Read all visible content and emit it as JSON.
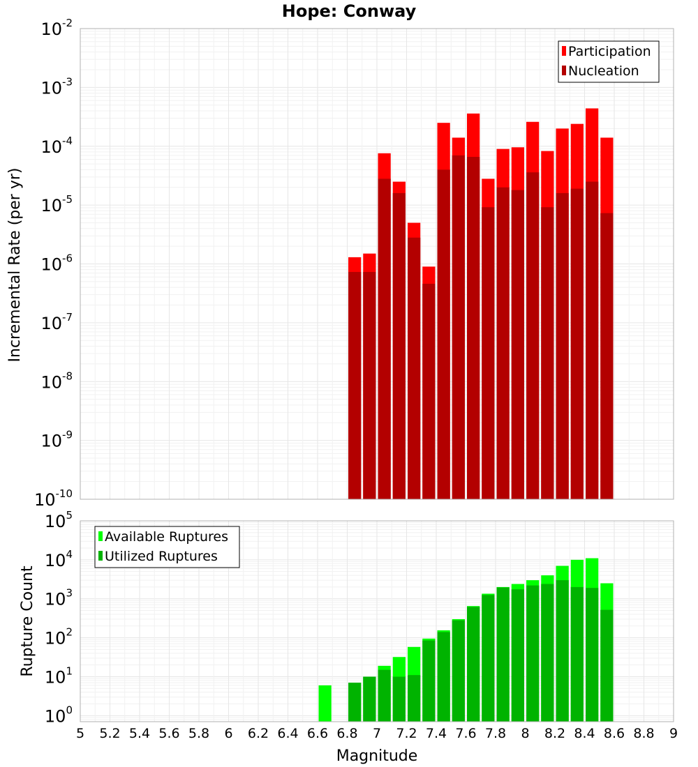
{
  "title": "Hope: Conway",
  "colors": {
    "participation": "#ff0000",
    "nucleation": "#b30000",
    "available": "#00ff00",
    "utilized": "#00b300"
  },
  "chart_data": [
    {
      "type": "bar",
      "title": "Hope: Conway",
      "ylabel": "Incremental Rate (per yr)",
      "xlabel": "",
      "y_scale": "log",
      "ylim": [
        1e-10,
        0.01
      ],
      "xlim": [
        5,
        9
      ],
      "y_ticks": [
        {
          "base": "10",
          "exp": "-10",
          "value": 1e-10
        },
        {
          "base": "10",
          "exp": "-9",
          "value": 1e-09
        },
        {
          "base": "10",
          "exp": "-8",
          "value": 1e-08
        },
        {
          "base": "10",
          "exp": "-7",
          "value": 1e-07
        },
        {
          "base": "10",
          "exp": "-6",
          "value": 1e-06
        },
        {
          "base": "10",
          "exp": "-5",
          "value": 1e-05
        },
        {
          "base": "10",
          "exp": "-4",
          "value": 0.0001
        },
        {
          "base": "10",
          "exp": "-3",
          "value": 0.001
        },
        {
          "base": "10",
          "exp": "-2",
          "value": 0.01
        }
      ],
      "legend": {
        "placement": "top-right",
        "items": [
          {
            "label": "Participation",
            "color": "#ff0000"
          },
          {
            "label": "Nucleation",
            "color": "#b30000"
          }
        ]
      },
      "x": [
        6.85,
        6.95,
        7.05,
        7.15,
        7.25,
        7.35,
        7.45,
        7.55,
        7.65,
        7.75,
        7.85,
        7.95,
        8.05,
        8.15,
        8.25,
        8.35,
        8.45,
        8.55
      ],
      "series": [
        {
          "name": "Participation",
          "color": "#ff0000",
          "values": [
            1.3e-06,
            1.5e-06,
            7.6e-05,
            2.5e-05,
            5e-06,
            9e-07,
            0.00025,
            0.00014,
            0.00036,
            2.8e-05,
            9e-05,
            9.6e-05,
            0.00026,
            8.3e-05,
            0.0002,
            0.00024,
            0.00044,
            0.00014
          ]
        },
        {
          "name": "Nucleation",
          "color": "#b30000",
          "values": [
            7.3e-07,
            7.3e-07,
            2.8e-05,
            1.6e-05,
            2.8e-06,
            4.6e-07,
            4e-05,
            7e-05,
            6.6e-05,
            9.2e-06,
            2e-05,
            1.8e-05,
            3.6e-05,
            9.2e-06,
            1.6e-05,
            1.9e-05,
            2.5e-05,
            7.3e-06
          ]
        }
      ]
    },
    {
      "type": "bar",
      "title": "",
      "ylabel": "Rupture Count",
      "xlabel": "Magnitude",
      "y_scale": "log",
      "ylim": [
        0.7,
        100000.0
      ],
      "xlim": [
        5,
        9
      ],
      "x_ticks": [
        "5",
        "5.2",
        "5.4",
        "5.6",
        "5.8",
        "6",
        "6.2",
        "6.4",
        "6.6",
        "6.8",
        "7",
        "7.2",
        "7.4",
        "7.6",
        "7.8",
        "8",
        "8.2",
        "8.4",
        "8.6",
        "8.8",
        "9"
      ],
      "y_ticks": [
        {
          "base": "10",
          "exp": "0",
          "value": 1
        },
        {
          "base": "10",
          "exp": "1",
          "value": 10
        },
        {
          "base": "10",
          "exp": "2",
          "value": 100
        },
        {
          "base": "10",
          "exp": "3",
          "value": 1000
        },
        {
          "base": "10",
          "exp": "4",
          "value": 10000
        },
        {
          "base": "10",
          "exp": "5",
          "value": 100000
        }
      ],
      "legend": {
        "placement": "top-left",
        "items": [
          {
            "label": "Available Ruptures",
            "color": "#00ff00"
          },
          {
            "label": "Utilized Ruptures",
            "color": "#00b300"
          }
        ]
      },
      "x": [
        6.65,
        6.85,
        6.95,
        7.05,
        7.15,
        7.25,
        7.35,
        7.45,
        7.55,
        7.65,
        7.75,
        7.85,
        7.95,
        8.05,
        8.15,
        8.25,
        8.35,
        8.45,
        8.55
      ],
      "series": [
        {
          "name": "Available Ruptures",
          "color": "#00ff00",
          "values": [
            6,
            7,
            10,
            19,
            32,
            58,
            95,
            155,
            300,
            650,
            1350,
            2000,
            2400,
            3000,
            4000,
            7000,
            10000,
            11000,
            2500
          ]
        },
        {
          "name": "Utilized Ruptures",
          "color": "#00b300",
          "values": [
            0,
            7,
            10,
            15,
            10,
            11,
            85,
            140,
            280,
            620,
            1250,
            1950,
            1750,
            2200,
            2400,
            3000,
            2000,
            1900,
            520
          ]
        }
      ]
    }
  ]
}
